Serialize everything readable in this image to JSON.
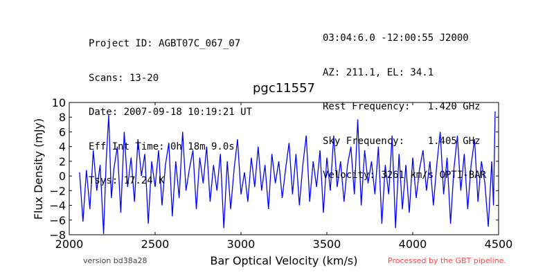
{
  "header": {
    "left_lines": [
      "Project ID: AGBT07C_067_07",
      "Scans: 13-20",
      "Date: 2007-09-18 10:19:21 UT",
      "Eff Int Time: 0h 18m 9.0s",
      "Tsys: 17.24 K"
    ],
    "right_lines": [
      "03:04:6.0 -12:00:55 J2000",
      "AZ: 211.1, EL: 34.1",
      "Rest Frequency:   1.420 GHz",
      "Sky Frequency:    1.405 GHz",
      "Velocity: 3261 km/s OPTI-BAR"
    ]
  },
  "footer": {
    "version": "version bd38a28",
    "processed": "Processed by the GBT pipeline.",
    "processed_color": "#ff4444"
  },
  "chart_data": {
    "type": "line",
    "title": "pgc11557",
    "xlabel": "Bar Optical Velocity (km/s)",
    "ylabel": "Flux Density (mJy)",
    "xlim": [
      2000,
      4500
    ],
    "ylim": [
      -8,
      10
    ],
    "xticks": [
      2000,
      2500,
      3000,
      3500,
      4000,
      4500
    ],
    "yticks": [
      -8,
      -6,
      -4,
      -2,
      0,
      2,
      4,
      6,
      10
    ],
    "ytick_labels_all": [
      -8,
      -6,
      -4,
      -2,
      0,
      2,
      4,
      6,
      8,
      10
    ],
    "grid": false,
    "line_color": "#0000ff",
    "x_range": [
      2060,
      4480
    ],
    "points": [
      [
        2060,
        0.5
      ],
      [
        2080,
        -6.2
      ],
      [
        2100,
        0.8
      ],
      [
        2120,
        -4.5
      ],
      [
        2140,
        3.5
      ],
      [
        2160,
        -2.0
      ],
      [
        2180,
        1.5
      ],
      [
        2200,
        -7.9
      ],
      [
        2215,
        2.0
      ],
      [
        2230,
        8.3
      ],
      [
        2245,
        -3.0
      ],
      [
        2260,
        1.0
      ],
      [
        2280,
        4.0
      ],
      [
        2300,
        -5.0
      ],
      [
        2320,
        6.0
      ],
      [
        2340,
        -1.5
      ],
      [
        2360,
        2.5
      ],
      [
        2380,
        -3.5
      ],
      [
        2400,
        5.0
      ],
      [
        2420,
        0.0
      ],
      [
        2440,
        3.0
      ],
      [
        2460,
        -6.5
      ],
      [
        2480,
        2.0
      ],
      [
        2500,
        -1.5
      ],
      [
        2520,
        3.5
      ],
      [
        2540,
        -4.0
      ],
      [
        2560,
        1.5
      ],
      [
        2580,
        4.5
      ],
      [
        2600,
        -5.5
      ],
      [
        2620,
        2.0
      ],
      [
        2640,
        -3.0
      ],
      [
        2660,
        6.0
      ],
      [
        2680,
        -2.0
      ],
      [
        2700,
        1.0
      ],
      [
        2720,
        3.5
      ],
      [
        2740,
        -4.5
      ],
      [
        2760,
        2.5
      ],
      [
        2780,
        -1.0
      ],
      [
        2800,
        4.0
      ],
      [
        2820,
        -3.5
      ],
      [
        2840,
        1.5
      ],
      [
        2860,
        -2.0
      ],
      [
        2880,
        3.0
      ],
      [
        2900,
        -7.1
      ],
      [
        2920,
        2.0
      ],
      [
        2940,
        -4.5
      ],
      [
        2960,
        1.0
      ],
      [
        2980,
        5.0
      ],
      [
        3000,
        -2.5
      ],
      [
        3020,
        0.5
      ],
      [
        3040,
        -3.5
      ],
      [
        3060,
        2.5
      ],
      [
        3080,
        -1.5
      ],
      [
        3100,
        4.0
      ],
      [
        3120,
        -2.0
      ],
      [
        3140,
        1.5
      ],
      [
        3160,
        -4.5
      ],
      [
        3180,
        3.0
      ],
      [
        3200,
        -1.0
      ],
      [
        3220,
        2.0
      ],
      [
        3240,
        -3.0
      ],
      [
        3260,
        1.0
      ],
      [
        3280,
        4.5
      ],
      [
        3300,
        -2.5
      ],
      [
        3320,
        3.0
      ],
      [
        3340,
        -4.0
      ],
      [
        3360,
        1.5
      ],
      [
        3380,
        5.5
      ],
      [
        3400,
        -3.5
      ],
      [
        3420,
        2.0
      ],
      [
        3440,
        -1.5
      ],
      [
        3460,
        3.5
      ],
      [
        3480,
        -5.0
      ],
      [
        3500,
        2.5
      ],
      [
        3520,
        -2.0
      ],
      [
        3540,
        5.5
      ],
      [
        3560,
        -1.5
      ],
      [
        3580,
        2.0
      ],
      [
        3600,
        -3.5
      ],
      [
        3620,
        1.5
      ],
      [
        3640,
        4.0
      ],
      [
        3660,
        -2.5
      ],
      [
        3680,
        7.7
      ],
      [
        3700,
        -4.0
      ],
      [
        3720,
        3.5
      ],
      [
        3740,
        -1.0
      ],
      [
        3760,
        2.0
      ],
      [
        3780,
        -2.5
      ],
      [
        3800,
        4.0
      ],
      [
        3820,
        -6.5
      ],
      [
        3840,
        1.5
      ],
      [
        3860,
        -2.5
      ],
      [
        3880,
        5.5
      ],
      [
        3900,
        -7.1
      ],
      [
        3920,
        3.0
      ],
      [
        3940,
        -4.5
      ],
      [
        3960,
        1.5
      ],
      [
        3980,
        -5.0
      ],
      [
        4000,
        2.5
      ],
      [
        4020,
        -3.0
      ],
      [
        4040,
        1.0
      ],
      [
        4060,
        3.5
      ],
      [
        4080,
        -2.0
      ],
      [
        4100,
        2.0
      ],
      [
        4120,
        -4.0
      ],
      [
        4140,
        1.5
      ],
      [
        4160,
        6.0
      ],
      [
        4180,
        -2.5
      ],
      [
        4200,
        2.5
      ],
      [
        4220,
        -6.5
      ],
      [
        4240,
        1.0
      ],
      [
        4260,
        5.5
      ],
      [
        4280,
        -2.0
      ],
      [
        4300,
        3.0
      ],
      [
        4320,
        -4.5
      ],
      [
        4340,
        1.5
      ],
      [
        4360,
        5.0
      ],
      [
        4380,
        -3.5
      ],
      [
        4400,
        2.0
      ],
      [
        4420,
        -1.0
      ],
      [
        4440,
        -6.9
      ],
      [
        4460,
        2.0
      ],
      [
        4470,
        -4.0
      ],
      [
        4480,
        8.8
      ]
    ]
  }
}
